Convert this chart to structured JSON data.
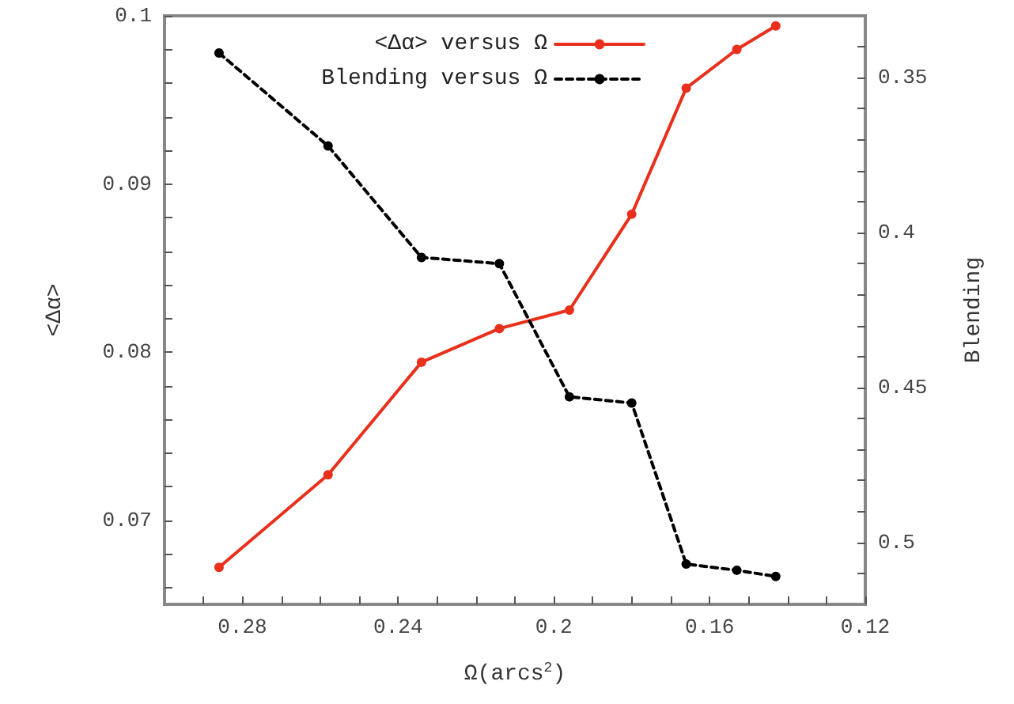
{
  "chart_data": {
    "type": "line",
    "xlabel": "Ω(arcs$^{2}$)",
    "ylabel": "<Δα>",
    "y2label": "Blending",
    "x": [
      0.286,
      0.258,
      0.234,
      0.214,
      0.196,
      0.18,
      0.166,
      0.153,
      0.143
    ],
    "series": [
      {
        "name": "<Δα> versus Ω",
        "color": "#e8301c",
        "line_style": "solid",
        "values": [
          0.0672,
          0.0727,
          0.0794,
          0.0814,
          0.0825,
          0.0882,
          0.0957,
          0.098,
          0.0994
        ]
      },
      {
        "name": "Blending versus Ω",
        "color": "#000000",
        "line_style": "dashed",
        "axis": "y2",
        "values": [
          0.342,
          0.372,
          0.408,
          0.41,
          0.453,
          0.455,
          0.507,
          0.509,
          0.511
        ]
      }
    ],
    "xlim": [
      0.3,
      0.12
    ],
    "xticks": [
      {
        "value": 0.29,
        "label": null
      },
      0.28,
      {
        "value": 0.27,
        "label": null
      },
      {
        "value": 0.26,
        "label": null
      },
      {
        "value": 0.25,
        "label": null
      },
      0.24,
      {
        "value": 0.23,
        "label": null
      },
      {
        "value": 0.22,
        "label": null
      },
      {
        "value": 0.21,
        "label": null
      },
      0.2,
      {
        "value": 0.19,
        "label": null
      },
      {
        "value": 0.18,
        "label": null
      },
      {
        "value": 0.17,
        "label": null
      },
      0.16,
      {
        "value": 0.15,
        "label": null
      },
      {
        "value": 0.14,
        "label": null
      },
      {
        "value": 0.13,
        "label": null
      },
      0.12
    ],
    "ylim": [
      0.065,
      0.1
    ],
    "yticks": [
      {
        "value": 0.066,
        "label": null
      },
      {
        "value": 0.068,
        "label": null
      },
      0.07,
      {
        "value": 0.072,
        "label": null
      },
      {
        "value": 0.074,
        "label": null
      },
      {
        "value": 0.076,
        "label": null
      },
      {
        "value": 0.078,
        "label": null
      },
      0.08,
      {
        "value": 0.082,
        "label": null
      },
      {
        "value": 0.084,
        "label": null
      },
      {
        "value": 0.086,
        "label": null
      },
      {
        "value": 0.088,
        "label": null
      },
      0.09,
      {
        "value": 0.092,
        "label": null
      },
      {
        "value": 0.094,
        "label": null
      },
      {
        "value": 0.096,
        "label": null
      },
      {
        "value": 0.098,
        "label": null
      },
      0.1
    ],
    "y2lim": [
      0.52,
      0.33
    ],
    "y2ticks": [
      {
        "value": 0.34,
        "label": null
      },
      0.35,
      {
        "value": 0.36,
        "label": null
      },
      {
        "value": 0.37,
        "label": null
      },
      {
        "value": 0.38,
        "label": null
      },
      {
        "value": 0.39,
        "label": null
      },
      0.4,
      {
        "value": 0.41,
        "label": null
      },
      {
        "value": 0.42,
        "label": null
      },
      {
        "value": 0.43,
        "label": null
      },
      {
        "value": 0.44,
        "label": null
      },
      0.45,
      {
        "value": 0.46,
        "label": null
      },
      {
        "value": 0.47,
        "label": null
      },
      {
        "value": 0.48,
        "label": null
      },
      {
        "value": 0.49,
        "label": null
      },
      0.5,
      {
        "value": 0.51,
        "label": null
      }
    ],
    "grid": false,
    "legend": "top right",
    "marker": "circle"
  }
}
